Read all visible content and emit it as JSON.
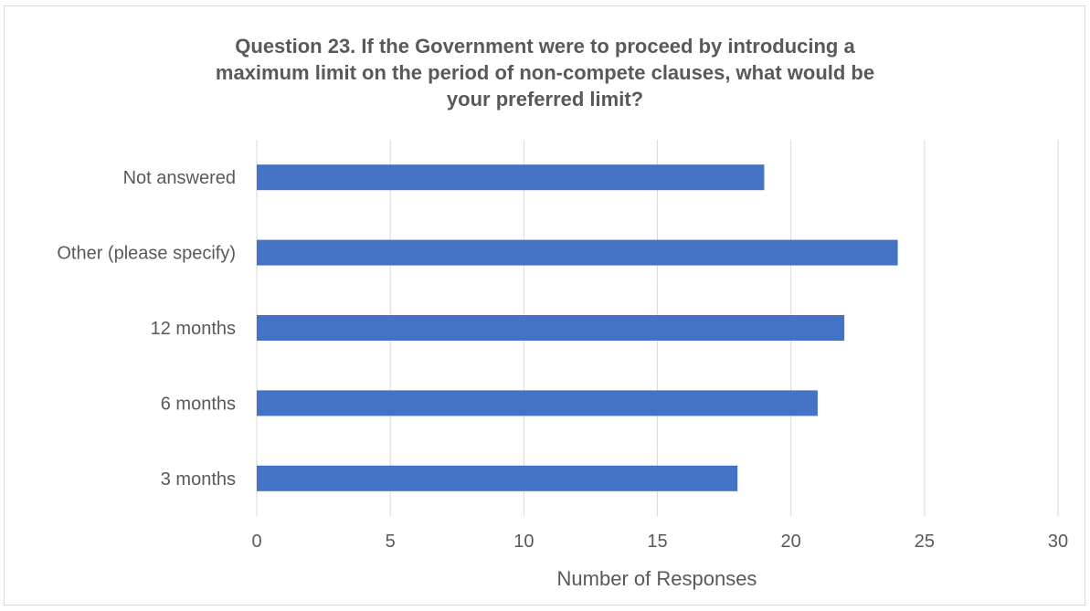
{
  "chart_data": {
    "type": "bar",
    "orientation": "horizontal",
    "title_lines": [
      "Question 23. If the Government were to proceed by introducing a",
      "maximum limit on the period of non-compete clauses, what would be",
      "your preferred limit?"
    ],
    "categories": [
      "Not answered",
      "Other (please specify)",
      "12 months",
      "6 months",
      "3 months"
    ],
    "values": [
      19,
      24,
      22,
      21,
      18
    ],
    "xlabel": "Number of Responses",
    "ylabel": "",
    "xlim": [
      0,
      30
    ],
    "x_ticks": [
      "0",
      "5",
      "10",
      "15",
      "20",
      "25",
      "30"
    ],
    "grid": "vertical",
    "legend": "none",
    "colors": {
      "bar": "#4472c4",
      "grid": "#d9d9d9",
      "text": "#595959"
    }
  }
}
